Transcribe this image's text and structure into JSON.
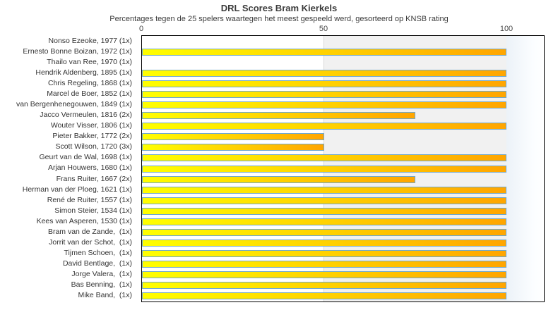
{
  "chart_data": {
    "type": "bar",
    "orientation": "horizontal",
    "title": "DRL Scores Bram Kierkels",
    "subtitle": "Percentages tegen de 25 spelers waartegen het meest gespeeld werd, gesorteerd op KNSB rating",
    "xlabel": "",
    "ylabel": "",
    "xlim": [
      0,
      100
    ],
    "x_ticks": [
      "0",
      "50",
      "100"
    ],
    "grid": "vertical line at 50, shaded band 50-100",
    "legend": "none",
    "categories": [
      "Nonso Ezeoke, 1977 (1x)",
      "Ernesto Bonne Boizan, 1972 (1x)",
      "Thailo van Ree, 1970 (1x)",
      "Hendrik Aldenberg, 1895 (1x)",
      "Chris Regeling, 1868 (1x)",
      "Marcel de Boer, 1852 (1x)",
      "van Bergenhenegouwen, 1849 (1x)",
      "Jacco Vermeulen, 1816 (2x)",
      "Wouter Visser, 1806 (1x)",
      "Pieter Bakker, 1772 (2x)",
      "Scott Wilson, 1720 (3x)",
      "Geurt van de Wal, 1698 (1x)",
      "Arjan Houwers, 1680 (1x)",
      "Frans Ruiter, 1667 (2x)",
      "Herman van der Ploeg, 1621 (1x)",
      "René de Ruiter, 1557 (1x)",
      "Simon Steier, 1534 (1x)",
      "Kees van Asperen, 1530 (1x)",
      "Bram van de Zande,  (1x)",
      "Jorrit van der Schot,  (1x)",
      "Tijmen Schoen,  (1x)",
      "David Bentlage,  (1x)",
      "Jorge Valera,  (1x)",
      "Bas Benning,  (1x)",
      "Mike Band,  (1x)"
    ],
    "values": [
      0,
      100,
      0,
      100,
      100,
      100,
      100,
      75,
      100,
      50,
      50,
      100,
      100,
      75,
      100,
      100,
      100,
      100,
      100,
      100,
      100,
      100,
      100,
      100,
      100
    ],
    "colors": {
      "bar_gradient_start": "#ffff00",
      "bar_gradient_end": "#ffa500",
      "bar_border": "#6fa8cd",
      "band_50_100": "#f1f1f1",
      "band_over_100_start": "#ecf2f8",
      "gridline": "#d9d9d9",
      "plot_border": "#000000",
      "text": "#3b3b3b"
    }
  }
}
